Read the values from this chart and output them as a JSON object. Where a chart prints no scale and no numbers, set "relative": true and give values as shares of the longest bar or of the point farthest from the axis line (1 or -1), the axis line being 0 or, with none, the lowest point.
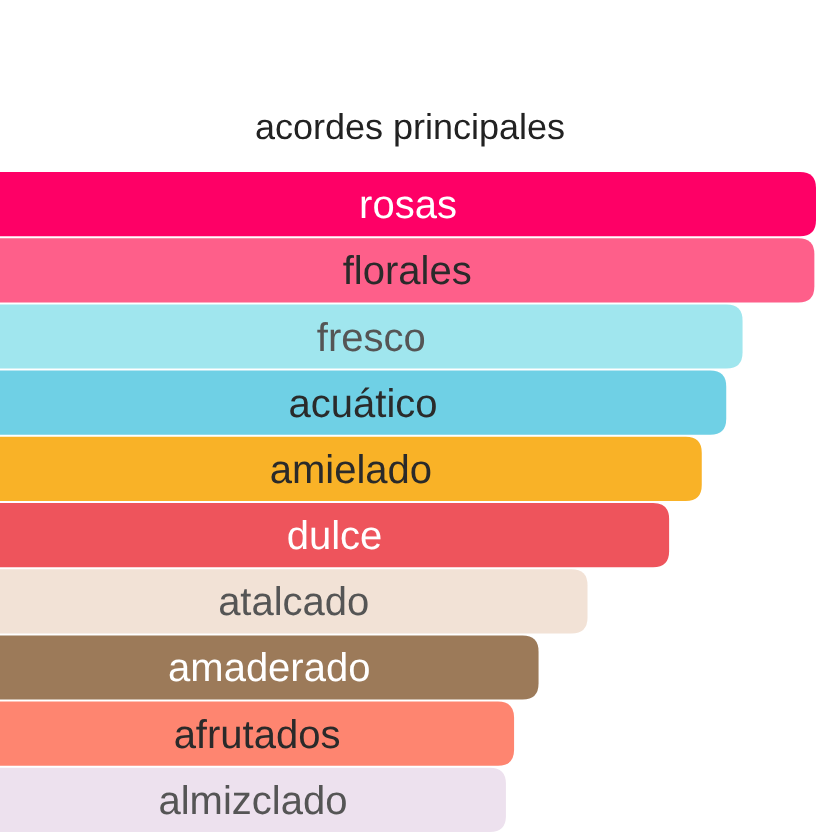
{
  "chart_data": {
    "type": "bar",
    "orientation": "horizontal",
    "relative": true,
    "title": "acordes principales",
    "categories": [
      "rosas",
      "florales",
      "fresco",
      "acuático",
      "amielado",
      "dulce",
      "atalcado",
      "amaderado",
      "afrutados",
      "almizclado"
    ],
    "values": [
      1,
      0.998,
      0.91,
      0.89,
      0.86,
      0.82,
      0.72,
      0.66,
      0.63,
      0.62
    ],
    "colors": [
      "#fe0066",
      "#fe5f8a",
      "#a0e6ee",
      "#6fd0e5",
      "#f9b227",
      "#ee545c",
      "#f2e2d6",
      "#9c7a59",
      "#fe8570",
      "#ede1ee"
    ]
  }
}
